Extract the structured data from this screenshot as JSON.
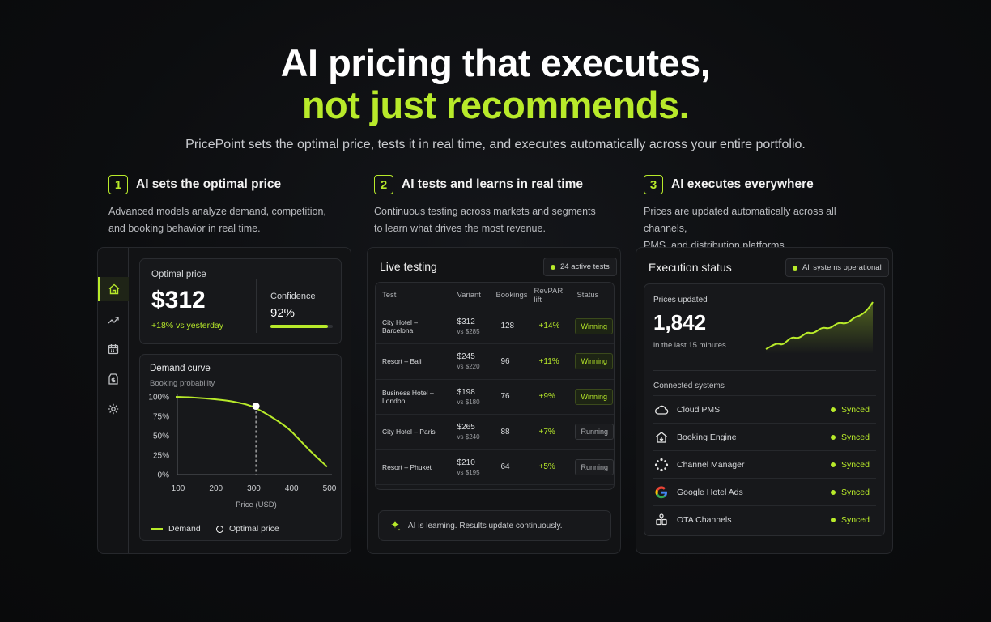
{
  "hero": {
    "title_line1": "AI pricing that executes,",
    "title_line2": "not just recommends.",
    "subtitle": "PricePoint sets the optimal price, tests it in real time, and executes automatically across your entire portfolio."
  },
  "steps": [
    {
      "num": "1",
      "title": "AI sets the optimal price",
      "desc_line1": "Advanced models analyze demand, competition,",
      "desc_line2": "and booking behavior in real time."
    },
    {
      "num": "2",
      "title": "AI tests and learns in real time",
      "desc_line1": "Continuous testing across markets and segments",
      "desc_line2": "to learn what drives the most revenue."
    },
    {
      "num": "3",
      "title": "AI executes everywhere",
      "desc_line1": "Prices are updated automatically across all channels,",
      "desc_line2": "PMS, and distribution platforms."
    }
  ],
  "sidebar": {
    "icons": [
      "home-icon",
      "trend-icon",
      "calendar-icon",
      "pricetag-icon",
      "gear-icon"
    ]
  },
  "optimal": {
    "label": "Optimal price",
    "value": "$312",
    "change": "+18% vs yesterday",
    "confidence_label": "Confidence",
    "confidence_value": "92%",
    "confidence_fraction": 0.92
  },
  "demand": {
    "title": "Demand curve",
    "ylabel": "Booking probability",
    "xlabel": "Price (USD)",
    "y_ticks": [
      "100%",
      "75%",
      "50%",
      "25%",
      "0%"
    ],
    "x_ticks": [
      "100",
      "200",
      "300",
      "400",
      "500"
    ],
    "legend_demand": "Demand",
    "legend_optimal": "Optimal price",
    "curve": [
      [
        100,
        1.0
      ],
      [
        150,
        0.99
      ],
      [
        200,
        0.97
      ],
      [
        250,
        0.94
      ],
      [
        300,
        0.88
      ],
      [
        350,
        0.75
      ],
      [
        400,
        0.58
      ],
      [
        450,
        0.33
      ],
      [
        500,
        0.1
      ]
    ],
    "optimal_point": [
      312,
      0.88
    ]
  },
  "live": {
    "title": "Live testing",
    "active_tests": "24 active tests",
    "headers": [
      "Test",
      "Variant",
      "Bookings",
      "RevPAR lift",
      "Status"
    ],
    "rows": [
      {
        "test": "City Hotel – Barcelona",
        "variant": "$312",
        "vs": "vs $285",
        "bookings": "128",
        "lift": "+14%",
        "status": "Winning"
      },
      {
        "test": "Resort – Bali",
        "variant": "$245",
        "vs": "vs $220",
        "bookings": "96",
        "lift": "+11%",
        "status": "Winning"
      },
      {
        "test": "Business Hotel – London",
        "variant": "$198",
        "vs": "vs $180",
        "bookings": "76",
        "lift": "+9%",
        "status": "Winning"
      },
      {
        "test": "City Hotel – Paris",
        "variant": "$265",
        "vs": "vs $240",
        "bookings": "88",
        "lift": "+7%",
        "status": "Running"
      },
      {
        "test": "Resort – Phuket",
        "variant": "$210",
        "vs": "vs $195",
        "bookings": "64",
        "lift": "+5%",
        "status": "Running"
      }
    ],
    "footer": "AI is learning. Results update continuously."
  },
  "exec": {
    "title": "Execution status",
    "operational": "All systems operational",
    "prices_label": "Prices updated",
    "prices_value": "1,842",
    "prices_period": "in the last 15 minutes",
    "connected_label": "Connected systems",
    "systems": [
      {
        "name": "Cloud PMS",
        "status": "Synced",
        "icon": "cloud-icon"
      },
      {
        "name": "Booking Engine",
        "status": "Synced",
        "icon": "booking-engine-icon"
      },
      {
        "name": "Channel Manager",
        "status": "Synced",
        "icon": "channel-manager-icon"
      },
      {
        "name": "Google Hotel Ads",
        "status": "Synced",
        "icon": "google-icon"
      },
      {
        "name": "OTA Channels",
        "status": "Synced",
        "icon": "ota-icon"
      }
    ]
  },
  "colors": {
    "accent": "#b8ea2a",
    "background": "#0c0d0f"
  }
}
